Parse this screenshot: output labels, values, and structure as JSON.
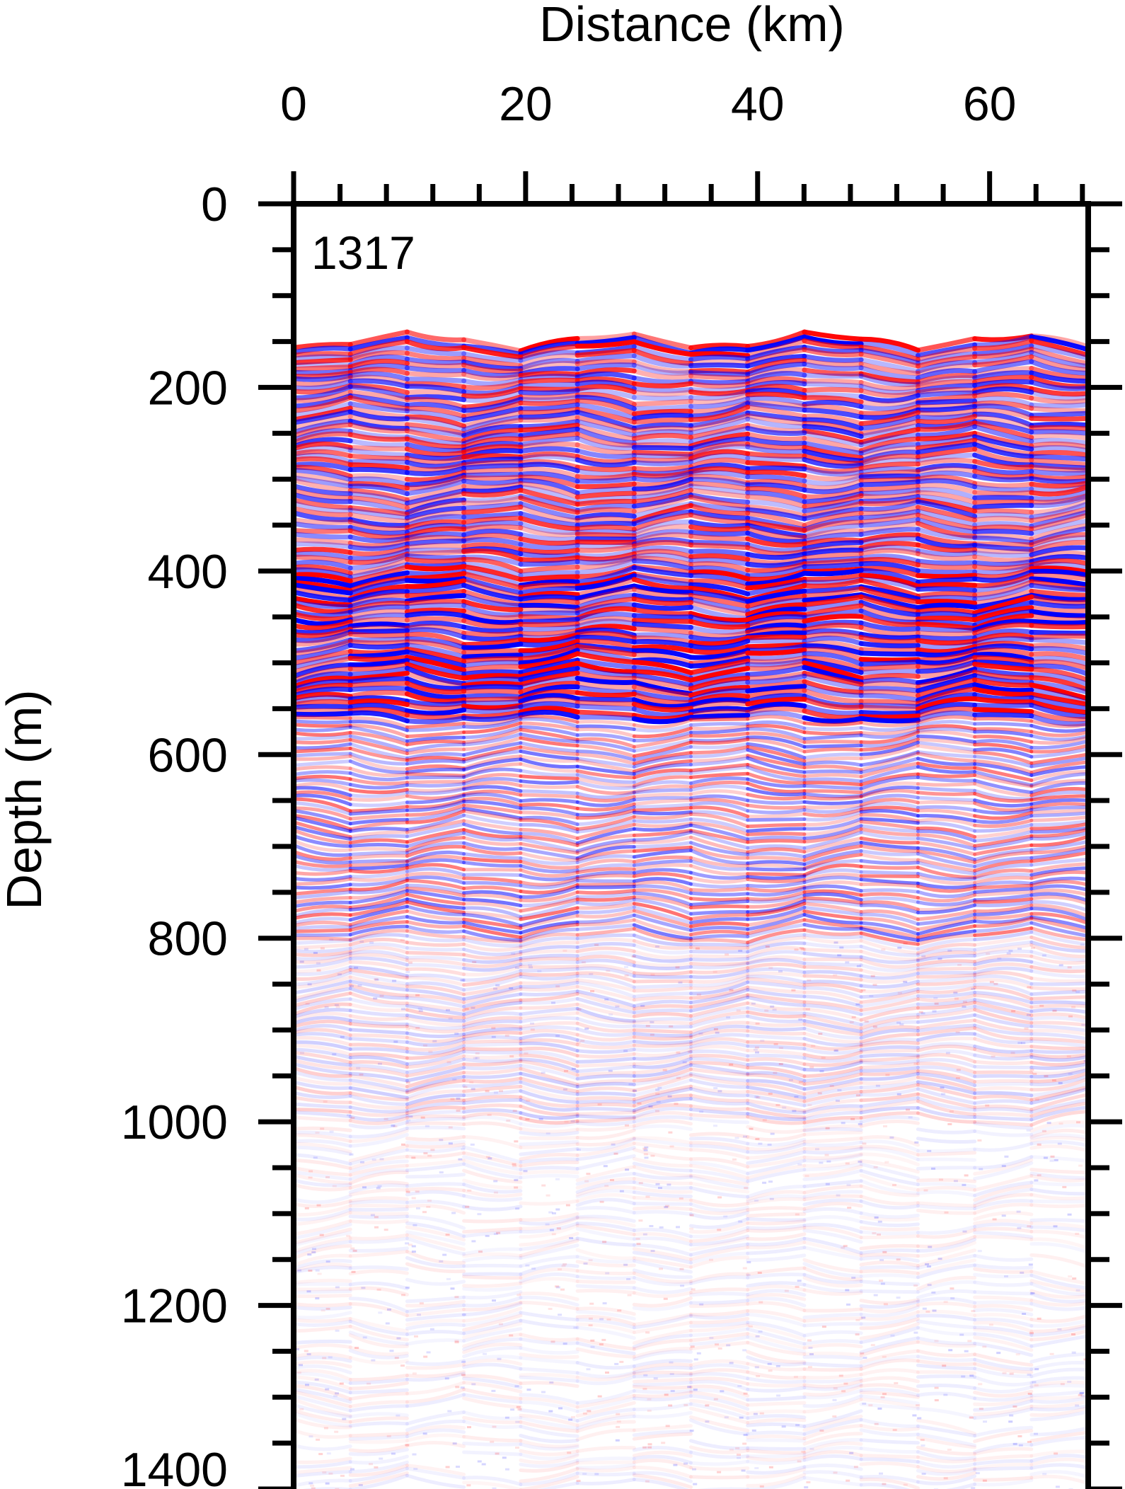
{
  "chart_data": {
    "type": "heatmap",
    "panel_label": "1317",
    "xlabel": "Distance (km)",
    "ylabel": "Depth (m)",
    "xlim": [
      0,
      68.5
    ],
    "ylim": [
      0,
      1400
    ],
    "y_inverted": true,
    "x_axis_position": "top",
    "x_ticks": [
      0,
      20,
      40,
      60
    ],
    "x_tick_labels": [
      "0",
      "20",
      "40",
      "60"
    ],
    "x_minor_tick_step": 4,
    "y_ticks": [
      0,
      200,
      400,
      600,
      800,
      1000,
      1200,
      1400
    ],
    "y_tick_labels": [
      "0",
      "200",
      "400",
      "600",
      "800",
      "1000",
      "1200",
      "1400"
    ],
    "y_minor_tick_step": 50,
    "grid": false,
    "colormap": {
      "negative": "#0000ff",
      "zero": "#ffffff",
      "positive": "#ff0000"
    },
    "seafloor_depth_m": 150,
    "reflectivity_zones": [
      {
        "top_m": 150,
        "bottom_m": 160,
        "description_level": 1.0
      },
      {
        "top_m": 160,
        "bottom_m": 400,
        "description_level": 0.75
      },
      {
        "top_m": 400,
        "bottom_m": 560,
        "description_level": 1.0
      },
      {
        "top_m": 560,
        "bottom_m": 800,
        "description_level": 0.5
      },
      {
        "top_m": 800,
        "bottom_m": 1000,
        "description_level": 0.18
      },
      {
        "top_m": 1000,
        "bottom_m": 1400,
        "description_level": 0.07
      }
    ]
  }
}
